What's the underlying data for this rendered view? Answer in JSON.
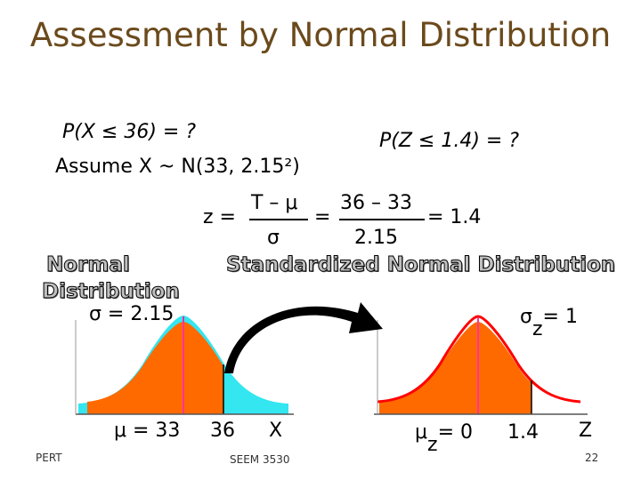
{
  "slide": {
    "title": "Assessment by Normal Distribution",
    "prob_x": "P(X ≤ 36) = ?",
    "assume": "Assume X ~ N(33, 2.15²)",
    "prob_z": "P(Z ≤ 1.4) = ?",
    "formula": {
      "z_eq": "z =",
      "num1": "T – μ",
      "den1": "σ",
      "eq": "=",
      "num2": "36 – 33",
      "den2": "2.15",
      "result": "= 1.4"
    },
    "normal_label_line1": "Normal",
    "normal_label_line2": "Distribution",
    "sigma_left": "σ = 2.15",
    "std_label": "Standardized Normal Distribution",
    "sigma_z_symbol": "σ",
    "sigma_z_sub": "z",
    "sigma_z_value": "= 1",
    "mu_left": "μ = 33",
    "x_36": "36",
    "x_label": "X",
    "mu_z_symbol": "μ",
    "mu_z_sub": "z",
    "mu_z_value": "= 0",
    "z_14": "1.4",
    "z_label": "Z",
    "footer_left": "PERT",
    "footer_center": "SEEM 3530",
    "page_number": "22"
  },
  "colors": {
    "title": "#6b4a1c",
    "left_tail": "#33e6f0",
    "shaded": "#ff6a00",
    "right_std_curve": "#ff0000",
    "mean_line": "#ff3399",
    "arrow": "#000000"
  }
}
